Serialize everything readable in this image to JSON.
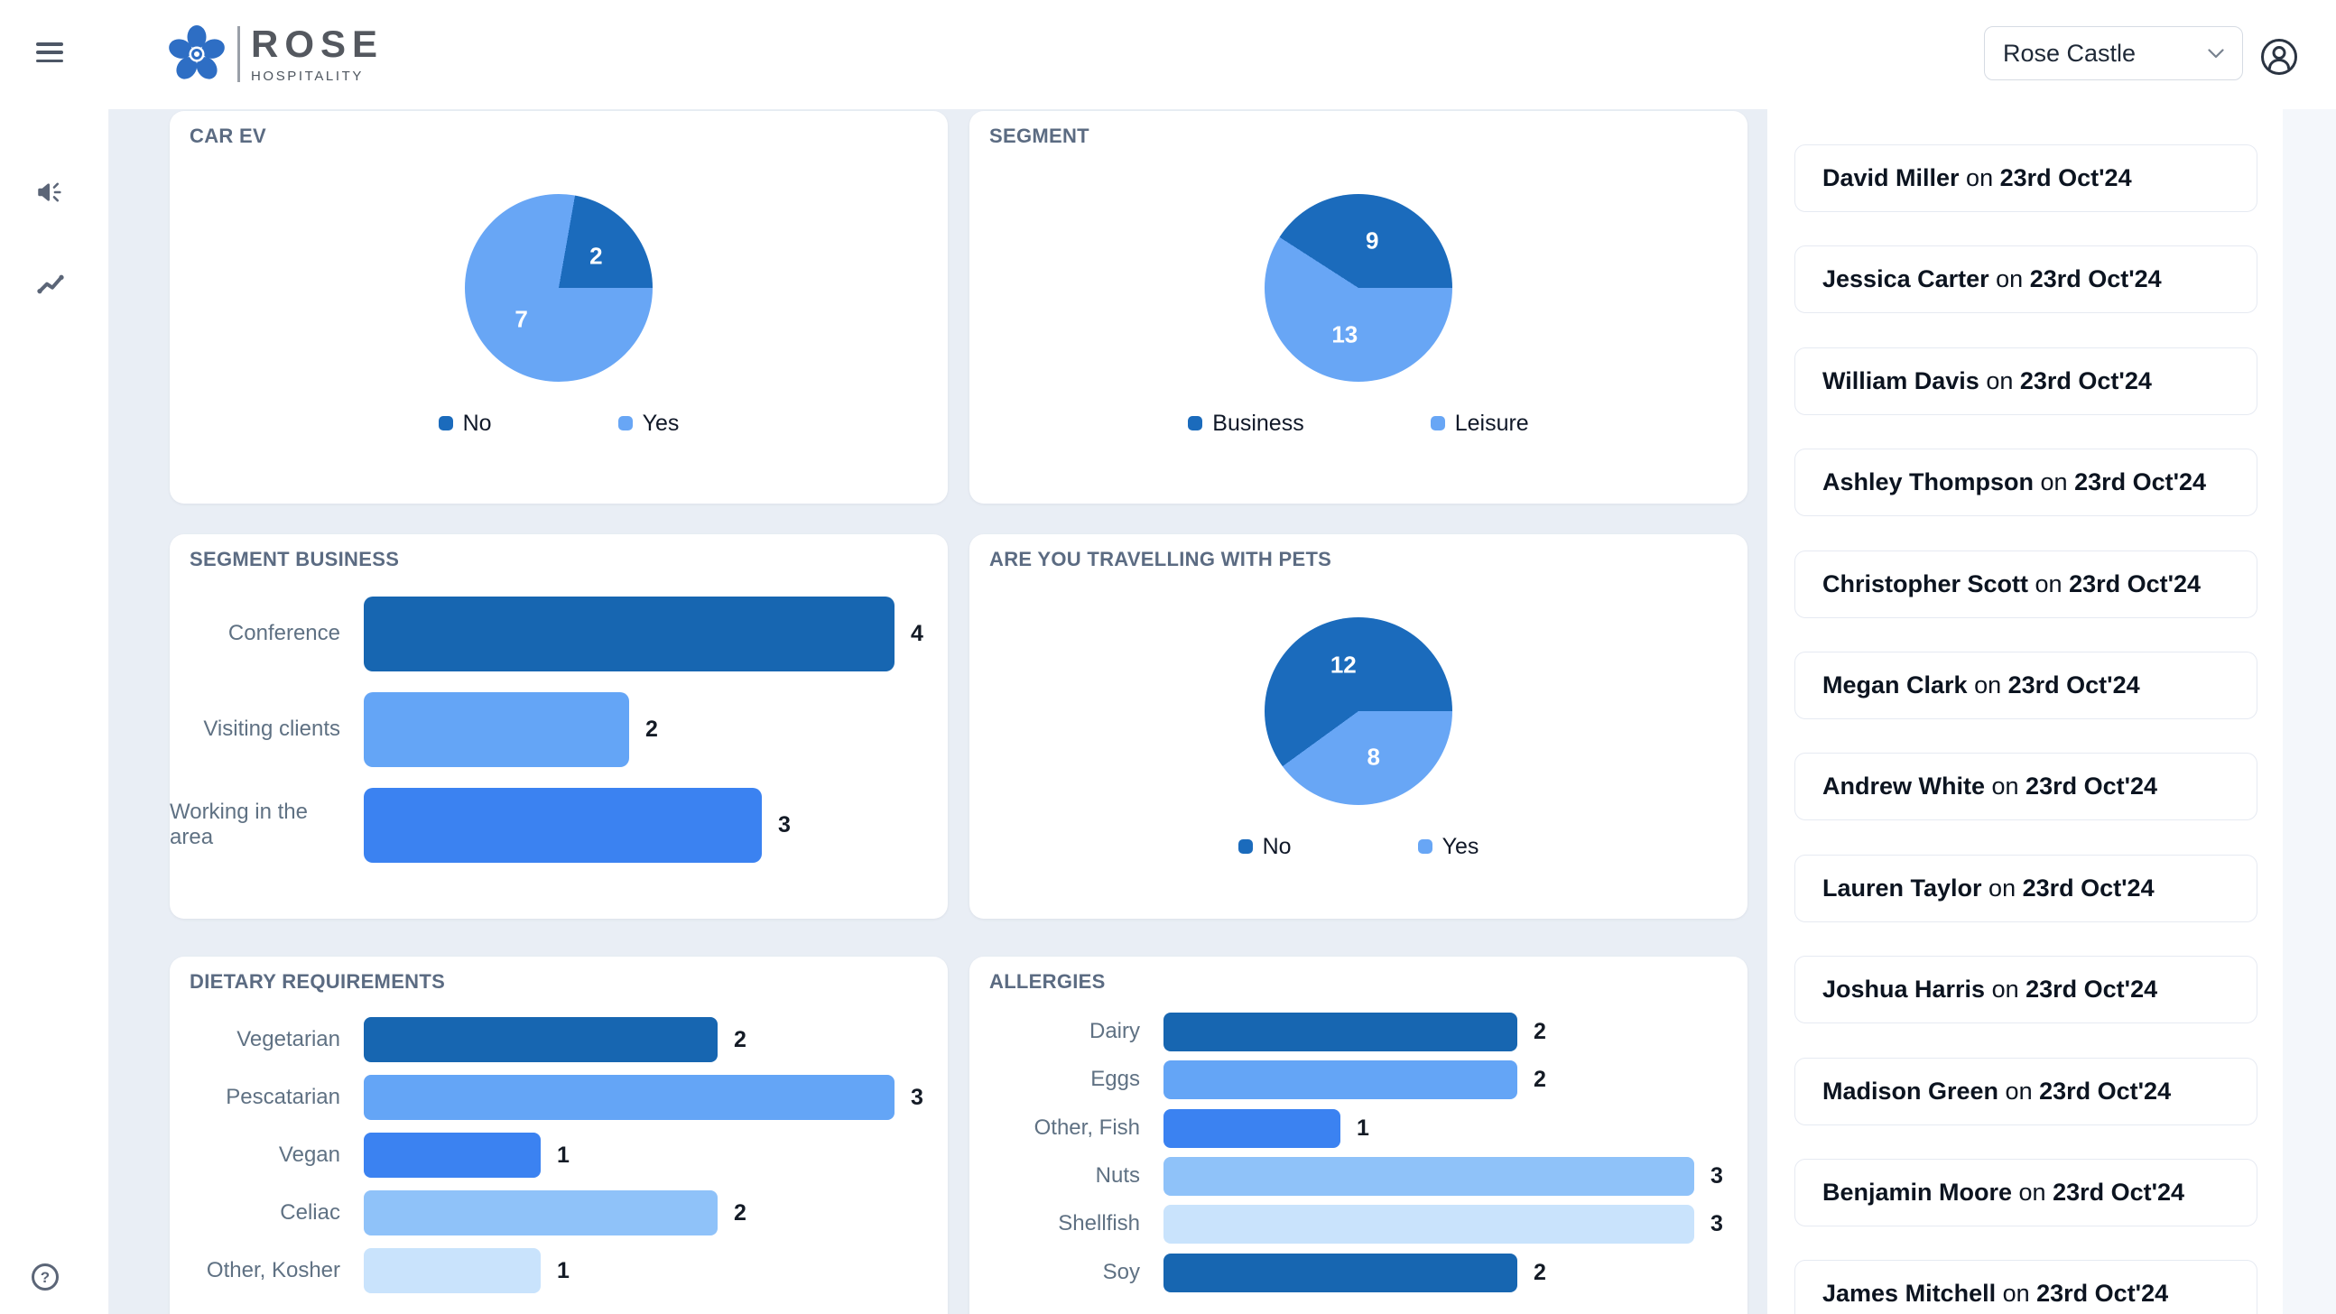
{
  "header": {
    "logo": {
      "name": "ROSE",
      "subtitle": "HOSPITALITY"
    },
    "property_selector": {
      "value": "Rose Castle"
    }
  },
  "sidebar": {
    "items": [
      {
        "icon": "megaphone-icon"
      },
      {
        "icon": "trend-line-icon"
      }
    ],
    "help_icon": "help-icon"
  },
  "charts": [
    {
      "id": "car-ev",
      "title": "CAR EV",
      "type": "pie",
      "slices": [
        {
          "label": "No",
          "value": 2,
          "color": "#1b6bbc"
        },
        {
          "label": "Yes",
          "value": 7,
          "color": "#68a6f5"
        }
      ]
    },
    {
      "id": "segment",
      "title": "SEGMENT",
      "type": "pie",
      "slices": [
        {
          "label": "Business",
          "value": 9,
          "color": "#1b6bbc"
        },
        {
          "label": "Leisure",
          "value": 13,
          "color": "#68a6f5"
        }
      ]
    },
    {
      "id": "segment-business",
      "title": "SEGMENT BUSINESS",
      "type": "bar",
      "bars": [
        {
          "label": "Conference",
          "value": 4,
          "color": "#1766b1"
        },
        {
          "label": "Visiting clients",
          "value": 2,
          "color": "#64a5f6"
        },
        {
          "label": "Working in the area",
          "value": 3,
          "color": "#3b82f1"
        }
      ]
    },
    {
      "id": "pets",
      "title": "ARE YOU TRAVELLING WITH PETS",
      "type": "pie",
      "slices": [
        {
          "label": "No",
          "value": 12,
          "color": "#1b6bbc"
        },
        {
          "label": "Yes",
          "value": 8,
          "color": "#68a6f5"
        }
      ]
    },
    {
      "id": "dietary",
      "title": "DIETARY REQUIREMENTS",
      "type": "bar",
      "bars": [
        {
          "label": "Vegetarian",
          "value": 2,
          "color": "#1766b1"
        },
        {
          "label": "Pescatarian",
          "value": 3,
          "color": "#64a5f6"
        },
        {
          "label": "Vegan",
          "value": 1,
          "color": "#3b82f1"
        },
        {
          "label": "Celiac",
          "value": 2,
          "color": "#8fc2f9"
        },
        {
          "label": "Other, Kosher",
          "value": 1,
          "color": "#c9e3fc"
        }
      ]
    },
    {
      "id": "allergies",
      "title": "ALLERGIES",
      "type": "bar",
      "bars": [
        {
          "label": "Dairy",
          "value": 2,
          "color": "#1766b1"
        },
        {
          "label": "Eggs",
          "value": 2,
          "color": "#64a5f6"
        },
        {
          "label": "Other, Fish",
          "value": 1,
          "color": "#3b82f1"
        },
        {
          "label": "Nuts",
          "value": 3,
          "color": "#8fc2f9"
        },
        {
          "label": "Shellfish",
          "value": 3,
          "color": "#c9e3fc"
        },
        {
          "label": "Soy",
          "value": 2,
          "color": "#1766b1"
        }
      ]
    }
  ],
  "chart_data": [
    {
      "type": "pie",
      "title": "CAR EV",
      "categories": [
        "No",
        "Yes"
      ],
      "values": [
        2,
        7
      ],
      "legend_position": "bottom"
    },
    {
      "type": "pie",
      "title": "SEGMENT",
      "categories": [
        "Business",
        "Leisure"
      ],
      "values": [
        9,
        13
      ],
      "legend_position": "bottom"
    },
    {
      "type": "bar",
      "title": "SEGMENT BUSINESS",
      "orientation": "horizontal",
      "categories": [
        "Conference",
        "Visiting clients",
        "Working in the area"
      ],
      "values": [
        4,
        2,
        3
      ]
    },
    {
      "type": "pie",
      "title": "ARE YOU TRAVELLING WITH PETS",
      "categories": [
        "No",
        "Yes"
      ],
      "values": [
        12,
        8
      ],
      "legend_position": "bottom"
    },
    {
      "type": "bar",
      "title": "DIETARY REQUIREMENTS",
      "orientation": "horizontal",
      "categories": [
        "Vegetarian",
        "Pescatarian",
        "Vegan",
        "Celiac",
        "Other, Kosher"
      ],
      "values": [
        2,
        3,
        1,
        2,
        1
      ]
    },
    {
      "type": "bar",
      "title": "ALLERGIES",
      "orientation": "horizontal",
      "categories": [
        "Dairy",
        "Eggs",
        "Other, Fish",
        "Nuts",
        "Shellfish",
        "Soy"
      ],
      "values": [
        2,
        2,
        1,
        3,
        3,
        2
      ]
    }
  ],
  "responses": {
    "connector": "on",
    "items": [
      {
        "name": "David Miller",
        "date": "23rd Oct'24"
      },
      {
        "name": "Jessica Carter",
        "date": "23rd Oct'24"
      },
      {
        "name": "William Davis",
        "date": "23rd Oct'24"
      },
      {
        "name": "Ashley Thompson",
        "date": "23rd Oct'24"
      },
      {
        "name": "Christopher Scott",
        "date": "23rd Oct'24"
      },
      {
        "name": "Megan Clark",
        "date": "23rd Oct'24"
      },
      {
        "name": "Andrew White",
        "date": "23rd Oct'24"
      },
      {
        "name": "Lauren Taylor",
        "date": "23rd Oct'24"
      },
      {
        "name": "Joshua Harris",
        "date": "23rd Oct'24"
      },
      {
        "name": "Madison Green",
        "date": "23rd Oct'24"
      },
      {
        "name": "Benjamin Moore",
        "date": "23rd Oct'24"
      },
      {
        "name": "James Mitchell",
        "date": "23rd Oct'24"
      }
    ]
  }
}
